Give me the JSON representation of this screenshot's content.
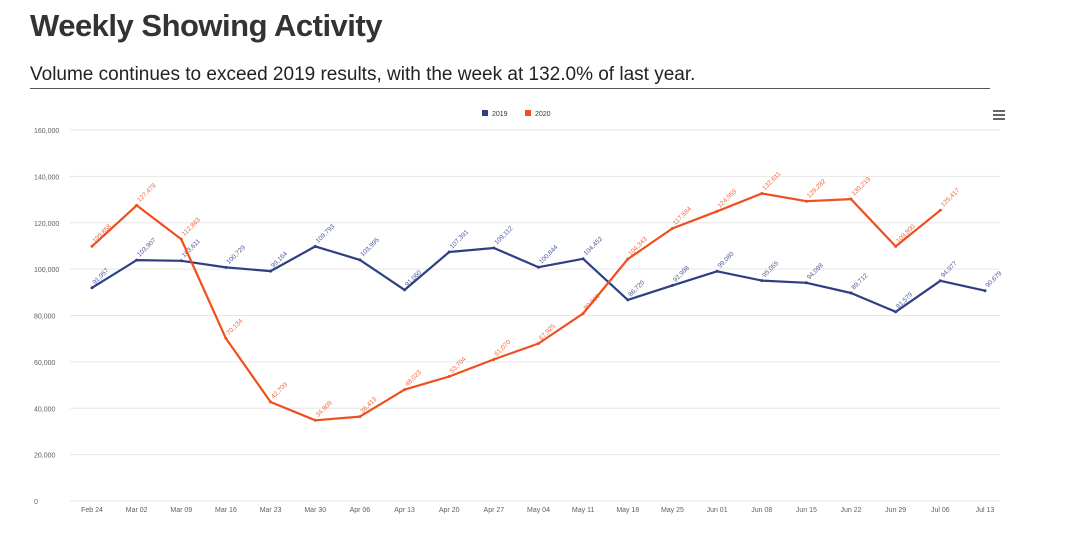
{
  "header": {
    "title": "Weekly Showing Activity",
    "subtitle": "Volume continues to exceed 2019 results, with the week at 132.0% of last year."
  },
  "toolbar": {
    "menu_icon": "hamburger-menu-icon"
  },
  "colors": {
    "series_2019": "#2e3f84",
    "series_2020": "#f04e1e",
    "grid": "#e6e6e6",
    "axis_text": "#606060"
  },
  "chart_data": {
    "type": "line",
    "categories": [
      "Feb 24",
      "Mar 02",
      "Mar 09",
      "Mar 16",
      "Mar 23",
      "Mar 30",
      "Apr 06",
      "Apr 13",
      "Apr 20",
      "Apr 27",
      "May 04",
      "May 11",
      "May 18",
      "May 25",
      "Jun 01",
      "Jun 08",
      "Jun 15",
      "Jun 22",
      "Jun 29",
      "Jul 06",
      "Jul 13"
    ],
    "ylim": [
      0,
      160000
    ],
    "yticks": [
      0,
      20000,
      40000,
      60000,
      80000,
      100000,
      120000,
      140000,
      160000
    ],
    "ytick_labels": [
      "0",
      "20,000",
      "40,000",
      "60,000",
      "80,000",
      "100,000",
      "120,000",
      "140,000",
      "160,000"
    ],
    "legend_position": "top-center",
    "grid": true,
    "series": [
      {
        "name": "2019",
        "color": "#2e3f84",
        "values": [
          91957,
          103907,
          103611,
          100729,
          99164,
          109793,
          103995,
          91060,
          107391,
          109112,
          100844,
          104452,
          86720,
          92998,
          99080,
          95055,
          94098,
          89712,
          81579,
          94977,
          90679
        ],
        "labels": [
          "91,957",
          "103,907",
          "103,611",
          "100,729",
          "99,164",
          "109,793",
          "103,995",
          "91,060",
          "107,391",
          "109,112",
          "100,844",
          "104,452",
          "86,720",
          "92,998",
          "99,080",
          "95,055",
          "94,098",
          "89,712",
          "81,579",
          "94,977",
          "90,679"
        ]
      },
      {
        "name": "2020",
        "color": "#f04e1e",
        "values": [
          109858,
          127478,
          112863,
          70134,
          42709,
          34809,
          36413,
          48023,
          53704,
          61070,
          67925,
          80860,
          104343,
          117584,
          124959,
          132611,
          129282,
          130219,
          109800,
          125417,
          null
        ],
        "labels": [
          "109,858",
          "127,478",
          "112,863",
          "70,134",
          "42,709",
          "34,809",
          "36,413",
          "48,023",
          "53,704",
          "61,070",
          "67,925",
          "80,860",
          "104,343",
          "117,584",
          "124,959",
          "132,611",
          "129,282",
          "130,219",
          "109,800",
          "125,417",
          ""
        ]
      }
    ]
  }
}
